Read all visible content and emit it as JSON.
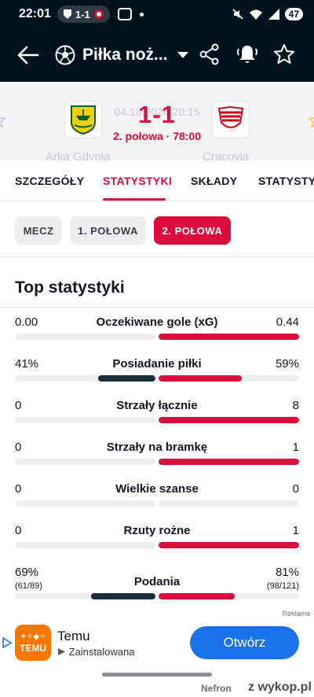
{
  "status_bar": {
    "time": "22:01",
    "live_score": "1-1",
    "battery": "47",
    "icons": [
      "shield-icon",
      "ball-icon",
      "screenshot-icon",
      "mute-icon",
      "wifi-icon",
      "signal-icon"
    ]
  },
  "app_bar": {
    "title": "Piłka noż...",
    "icons": [
      "back-arrow-icon",
      "football-icon",
      "dropdown-caret-icon",
      "share-icon",
      "bell-icon",
      "star-icon"
    ]
  },
  "match": {
    "date_time": "04.10.2024 20:15",
    "score": "1-1",
    "period": "2. połowa · 78:00",
    "home_team": "Arka Gdynia",
    "away_team": "Cracovia",
    "home_crest_text": "ARKA"
  },
  "tabs": [
    {
      "label": "SZCZEGÓŁY",
      "active": false
    },
    {
      "label": "STATYSTYKI",
      "active": true
    },
    {
      "label": "SKŁADY",
      "active": false
    },
    {
      "label": "STATYSTYKI",
      "active": false
    }
  ],
  "chips": [
    {
      "label": "MECZ",
      "active": false
    },
    {
      "label": "1. POŁOWA",
      "active": false
    },
    {
      "label": "2. POŁOWA",
      "active": true
    }
  ],
  "section_title": "Top statystyki",
  "stats": [
    {
      "name": "Oczekiwane gole (xG)",
      "home": "0.00",
      "away": "0.44",
      "home_share": 0,
      "away_share": 1
    },
    {
      "name": "Posiadanie piłki",
      "home": "41%",
      "away": "59%",
      "home_share": 0.41,
      "away_share": 0.59
    },
    {
      "name": "Strzały łącznie",
      "home": "0",
      "away": "8",
      "home_share": 0,
      "away_share": 1
    },
    {
      "name": "Strzały na bramkę",
      "home": "0",
      "away": "1",
      "home_share": 0,
      "away_share": 1
    },
    {
      "name": "Wielkie szanse",
      "home": "0",
      "away": "0",
      "home_share": 0,
      "away_share": 0
    },
    {
      "name": "Rzuty rożne",
      "home": "0",
      "away": "1",
      "home_share": 0,
      "away_share": 1
    },
    {
      "name": "Podania",
      "home": "69%",
      "away": "81%",
      "home_sub": "(61/89)",
      "away_sub": "(98/121)",
      "home_share": 0.46,
      "away_share": 0.54
    }
  ],
  "ad": {
    "label": "Reklama",
    "app_name": "Temu",
    "status": "Zainstalowana",
    "logo_text": "TEMU",
    "cta": "Otwórz"
  },
  "watermark": {
    "user": "Nefron",
    "site": "z wykop.pl"
  },
  "colors": {
    "header_bg": "#00141e",
    "accent": "#dc0c3c",
    "home_bar": "#1a2f3a",
    "cta_blue": "#1a73e8",
    "temu_orange": "#fb7701"
  }
}
